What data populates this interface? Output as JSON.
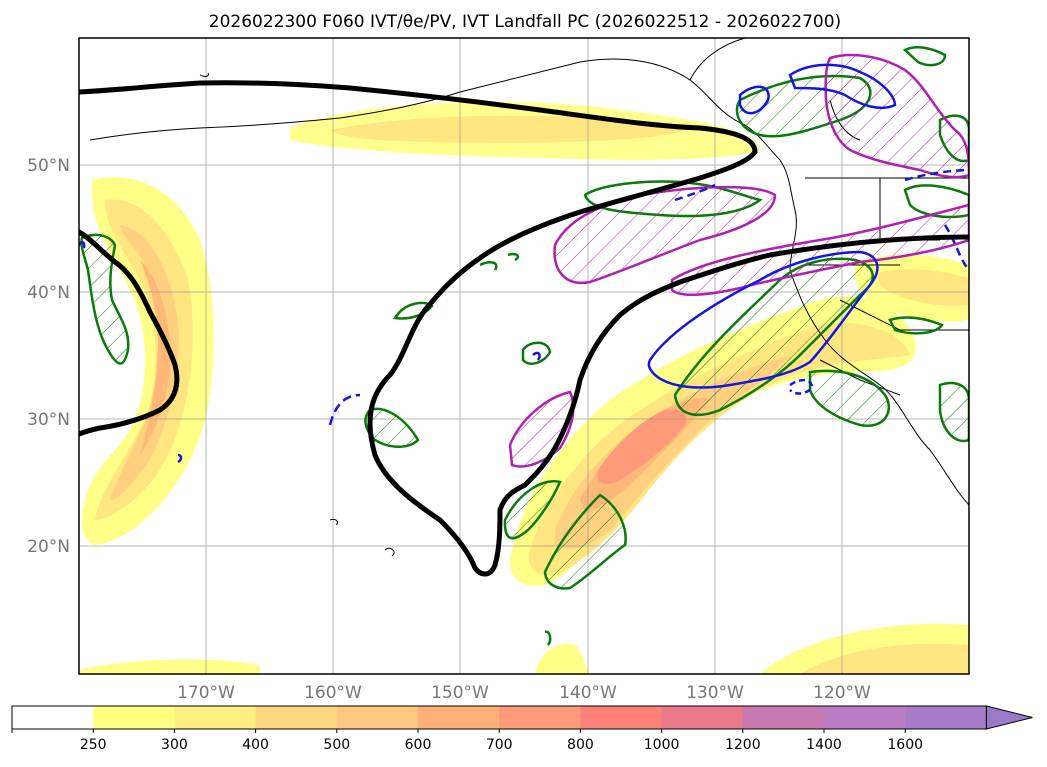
{
  "title": "2026022300 F060 IVT/θe/PV, IVT Landfall PC (2026022512 - 2026022700)",
  "map": {
    "lat_labels": [
      "50°N",
      "40°N",
      "30°N",
      "20°N"
    ],
    "lon_labels": [
      "170°W",
      "160°W",
      "150°W",
      "140°W",
      "130°W",
      "120°W"
    ]
  },
  "colorbar": {
    "labels": [
      "250",
      "300",
      "400",
      "500",
      "600",
      "700",
      "800",
      "1000",
      "1200",
      "1400",
      "1600"
    ],
    "colors": [
      "#ffffff",
      "#ffff80",
      "#ffee80",
      "#ffd880",
      "#ffc880",
      "#ffb078",
      "#ff9a78",
      "#ff8278",
      "#e8788a",
      "#c87ab0",
      "#ba7cc4",
      "#a77cc8",
      "#9a79c6"
    ]
  }
}
